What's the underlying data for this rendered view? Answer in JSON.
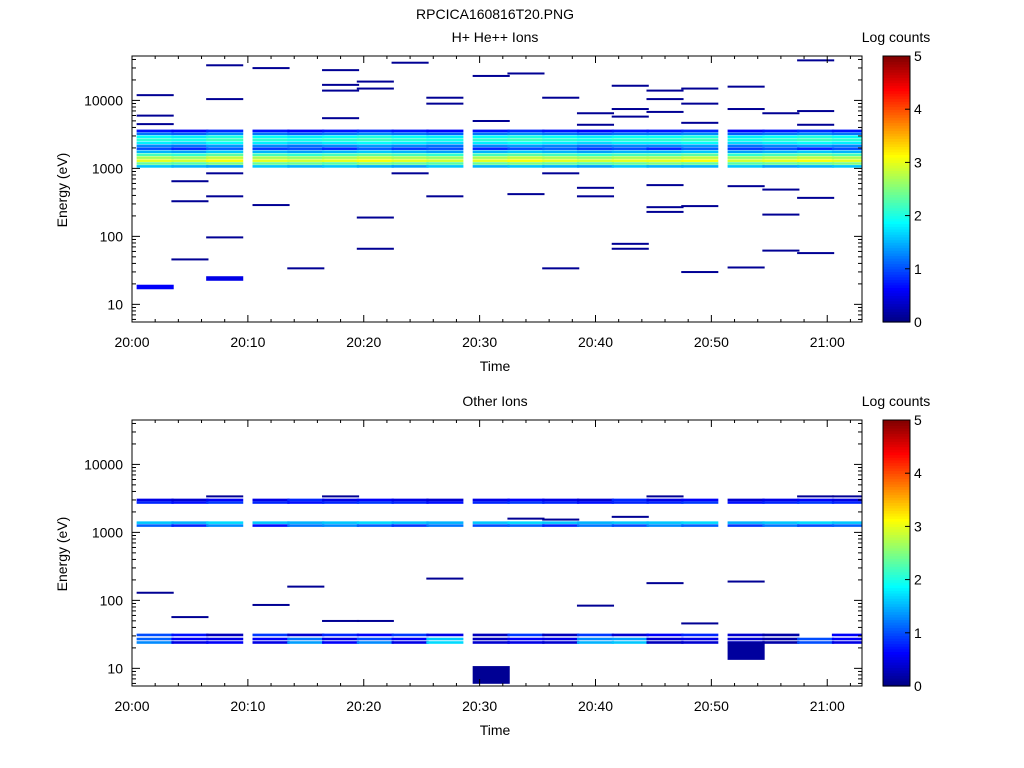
{
  "figure_title": "RPCICA160816T20.PNG",
  "chart_data": [
    {
      "type": "heatmap",
      "title": "H+ He++ Ions",
      "xlabel": "Time",
      "ylabel": "Energy (eV)",
      "yscale": "log",
      "xlim": [
        "20:00",
        "21:03"
      ],
      "ylim": [
        5.5,
        45000
      ],
      "x_ticks": [
        "20:00",
        "20:10",
        "20:20",
        "20:30",
        "20:40",
        "20:50",
        "21:00"
      ],
      "y_ticks": [
        "10",
        "100",
        "1000",
        "10000"
      ],
      "colorbar": {
        "label": "Log counts",
        "range": [
          0,
          5
        ],
        "ticks": [
          "0",
          "1",
          "2",
          "3",
          "4",
          "5"
        ],
        "colormap": "jet"
      },
      "time_bins": [
        "20:02",
        "20:05",
        "20:08",
        "20:12",
        "20:15",
        "20:18",
        "20:21",
        "20:24",
        "20:27",
        "20:31",
        "20:34",
        "20:37",
        "20:40",
        "20:43",
        "20:46",
        "20:49",
        "20:53",
        "20:56",
        "20:59",
        "21:02"
      ],
      "bands": [
        {
          "energy": 1070,
          "log_counts": [
            1.6,
            1.5,
            1.4,
            1.6,
            1.5,
            1.6,
            1.5,
            1.4,
            1.6,
            1.5,
            1.6,
            1.5,
            1.4,
            1.6,
            1.5,
            1.5,
            1.6,
            1.4,
            1.5,
            1.6
          ]
        },
        {
          "energy": 1180,
          "log_counts": [
            2.4,
            2.3,
            2.5,
            2.4,
            2.4,
            2.3,
            2.5,
            2.4,
            2.3,
            2.4,
            2.5,
            2.4,
            2.3,
            2.4,
            2.5,
            2.4,
            2.3,
            2.4,
            2.4,
            2.5
          ]
        },
        {
          "energy": 1300,
          "log_counts": [
            3.0,
            2.9,
            3.1,
            3.0,
            2.9,
            3.0,
            3.1,
            3.0,
            2.9,
            3.0,
            3.1,
            3.0,
            2.9,
            3.0,
            3.0,
            3.1,
            2.9,
            3.0,
            3.1,
            3.0
          ]
        },
        {
          "energy": 1440,
          "log_counts": [
            2.7,
            2.6,
            2.8,
            2.7,
            2.6,
            2.7,
            2.8,
            2.7,
            2.6,
            2.7,
            2.8,
            2.7,
            2.6,
            2.7,
            2.7,
            2.8,
            2.6,
            2.7,
            2.8,
            2.7
          ]
        },
        {
          "energy": 1590,
          "log_counts": [
            2.2,
            2.1,
            2.3,
            2.2,
            2.1,
            2.2,
            2.3,
            2.2,
            2.1,
            2.2,
            2.3,
            2.2,
            2.1,
            2.2,
            2.2,
            2.3,
            2.1,
            2.2,
            2.3,
            2.2
          ]
        },
        {
          "energy": 1760,
          "log_counts": [
            1.5,
            1.4,
            1.6,
            1.5,
            1.4,
            1.5,
            1.6,
            1.5,
            1.4,
            1.5,
            1.6,
            1.5,
            1.4,
            1.5,
            1.5,
            1.6,
            1.4,
            1.5,
            1.6,
            1.5
          ]
        },
        {
          "energy": 1950,
          "log_counts": [
            1.0,
            0.8,
            1.1,
            0.9,
            1.0,
            0.8,
            1.1,
            0.9,
            1.0,
            0.8,
            1.0,
            1.1,
            0.9,
            1.0,
            0.8,
            1.1,
            0.9,
            1.0,
            0.8,
            1.0
          ]
        },
        {
          "energy": 2150,
          "log_counts": [
            1.3,
            1.2,
            1.4,
            1.3,
            1.2,
            1.3,
            1.4,
            1.3,
            1.2,
            1.3,
            1.4,
            1.3,
            1.2,
            1.3,
            1.3,
            1.4,
            1.2,
            1.3,
            1.4,
            1.3
          ]
        },
        {
          "energy": 2380,
          "log_counts": [
            1.8,
            1.7,
            1.9,
            1.8,
            1.7,
            1.8,
            1.9,
            1.8,
            1.7,
            1.8,
            1.9,
            1.8,
            1.7,
            1.8,
            1.8,
            1.9,
            1.7,
            1.8,
            1.9,
            1.8
          ]
        },
        {
          "energy": 2640,
          "log_counts": [
            2.1,
            2.0,
            2.2,
            2.1,
            2.0,
            2.1,
            2.2,
            2.1,
            2.0,
            2.1,
            2.2,
            2.1,
            2.0,
            2.1,
            2.1,
            2.2,
            2.0,
            2.1,
            2.2,
            2.1
          ]
        },
        {
          "energy": 2920,
          "log_counts": [
            1.9,
            1.8,
            2.0,
            1.9,
            1.8,
            1.9,
            2.0,
            1.9,
            1.8,
            1.9,
            2.0,
            1.9,
            1.8,
            1.9,
            1.9,
            2.0,
            1.8,
            1.9,
            2.0,
            1.9
          ]
        },
        {
          "energy": 3230,
          "log_counts": [
            1.2,
            1.1,
            1.3,
            1.2,
            1.1,
            1.2,
            1.3,
            1.2,
            1.1,
            1.2,
            1.3,
            1.2,
            1.1,
            1.2,
            1.2,
            1.3,
            1.1,
            1.2,
            1.3,
            1.2
          ]
        },
        {
          "energy": 3560,
          "log_counts": [
            0.7,
            0.6,
            0.8,
            0.7,
            0.6,
            0.7,
            0.8,
            0.7,
            0.6,
            0.7,
            0.8,
            0.7,
            0.6,
            0.7,
            0.7,
            0.8,
            0.6,
            0.7,
            0.8,
            0.7
          ]
        }
      ],
      "sparse_points": [
        {
          "t": "20:02",
          "e": 12000
        },
        {
          "t": "20:02",
          "e": 6000
        },
        {
          "t": "20:02",
          "e": 4500
        },
        {
          "t": "20:02",
          "e": 18,
          "c": 0.6
        },
        {
          "t": "20:05",
          "e": 650
        },
        {
          "t": "20:05",
          "e": 330
        },
        {
          "t": "20:05",
          "e": 46
        },
        {
          "t": "20:08",
          "e": 33000
        },
        {
          "t": "20:08",
          "e": 10500
        },
        {
          "t": "20:08",
          "e": 850
        },
        {
          "t": "20:08",
          "e": 390
        },
        {
          "t": "20:08",
          "e": 97
        },
        {
          "t": "20:08",
          "e": 24,
          "c": 0.5
        },
        {
          "t": "20:12",
          "e": 30000
        },
        {
          "t": "20:12",
          "e": 290
        },
        {
          "t": "20:15",
          "e": 34
        },
        {
          "t": "20:18",
          "e": 28000
        },
        {
          "t": "20:18",
          "e": 17000
        },
        {
          "t": "20:18",
          "e": 14000
        },
        {
          "t": "20:18",
          "e": 5500
        },
        {
          "t": "20:21",
          "e": 19000
        },
        {
          "t": "20:21",
          "e": 15000
        },
        {
          "t": "20:21",
          "e": 190
        },
        {
          "t": "20:21",
          "e": 66
        },
        {
          "t": "20:24",
          "e": 36000
        },
        {
          "t": "20:24",
          "e": 850
        },
        {
          "t": "20:27",
          "e": 11000
        },
        {
          "t": "20:27",
          "e": 9000
        },
        {
          "t": "20:27",
          "e": 390
        },
        {
          "t": "20:31",
          "e": 23000
        },
        {
          "t": "20:31",
          "e": 5000
        },
        {
          "t": "20:34",
          "e": 25000
        },
        {
          "t": "20:34",
          "e": 420
        },
        {
          "t": "20:37",
          "e": 11000
        },
        {
          "t": "20:37",
          "e": 850
        },
        {
          "t": "20:37",
          "e": 34
        },
        {
          "t": "20:40",
          "e": 6500
        },
        {
          "t": "20:40",
          "e": 4400
        },
        {
          "t": "20:40",
          "e": 520
        },
        {
          "t": "20:40",
          "e": 390
        },
        {
          "t": "20:43",
          "e": 16500
        },
        {
          "t": "20:43",
          "e": 7500
        },
        {
          "t": "20:43",
          "e": 5800
        },
        {
          "t": "20:43",
          "e": 78
        },
        {
          "t": "20:43",
          "e": 66
        },
        {
          "t": "20:46",
          "e": 14000
        },
        {
          "t": "20:46",
          "e": 10500
        },
        {
          "t": "20:46",
          "e": 6800
        },
        {
          "t": "20:46",
          "e": 570
        },
        {
          "t": "20:46",
          "e": 270
        },
        {
          "t": "20:46",
          "e": 230
        },
        {
          "t": "20:49",
          "e": 15000
        },
        {
          "t": "20:49",
          "e": 9000
        },
        {
          "t": "20:49",
          "e": 4700
        },
        {
          "t": "20:49",
          "e": 280
        },
        {
          "t": "20:49",
          "e": 30
        },
        {
          "t": "20:53",
          "e": 16000
        },
        {
          "t": "20:53",
          "e": 7500
        },
        {
          "t": "20:53",
          "e": 550
        },
        {
          "t": "20:53",
          "e": 35
        },
        {
          "t": "20:56",
          "e": 6500
        },
        {
          "t": "20:56",
          "e": 490
        },
        {
          "t": "20:56",
          "e": 210
        },
        {
          "t": "20:56",
          "e": 62
        },
        {
          "t": "20:59",
          "e": 39000
        },
        {
          "t": "20:59",
          "e": 7000
        },
        {
          "t": "20:59",
          "e": 4400
        },
        {
          "t": "20:59",
          "e": 370
        },
        {
          "t": "20:59",
          "e": 57
        }
      ]
    },
    {
      "type": "heatmap",
      "title": "Other Ions",
      "xlabel": "Time",
      "ylabel": "Energy (eV)",
      "yscale": "log",
      "xlim": [
        "20:00",
        "21:03"
      ],
      "ylim": [
        5.5,
        45000
      ],
      "x_ticks": [
        "20:00",
        "20:10",
        "20:20",
        "20:30",
        "20:40",
        "20:50",
        "21:00"
      ],
      "y_ticks": [
        "10",
        "100",
        "1000",
        "10000"
      ],
      "colorbar": {
        "label": "Log counts",
        "range": [
          0,
          5
        ],
        "ticks": [
          "0",
          "1",
          "2",
          "3",
          "4",
          "5"
        ],
        "colormap": "jet"
      },
      "time_bins": [
        "20:02",
        "20:05",
        "20:08",
        "20:12",
        "20:15",
        "20:18",
        "20:21",
        "20:24",
        "20:27",
        "20:31",
        "20:34",
        "20:37",
        "20:40",
        "20:43",
        "20:46",
        "20:49",
        "20:53",
        "20:56",
        "20:59",
        "21:02"
      ],
      "bands": [
        {
          "energy": 24,
          "log_counts": [
            1.3,
            0.5,
            0.6,
            0.5,
            1.4,
            0.6,
            1.3,
            0.5,
            1.7,
            0.4,
            0.5,
            0.4,
            1.5,
            1.6,
            0.3,
            0.4,
            0.3,
            0.2,
            1.0,
            0.5
          ]
        },
        {
          "energy": 27,
          "log_counts": [
            1.1,
            0.6,
            0.5,
            0.6,
            1.2,
            0.5,
            1.0,
            0.6,
            1.6,
            0.3,
            0.6,
            0.5,
            1.3,
            1.4,
            0.4,
            0.5,
            0.4,
            0.2,
            1.0,
            0.6
          ]
        },
        {
          "energy": 31,
          "log_counts": [
            1.0,
            0.7,
            0.3,
            0.9,
            0.4,
            0.8,
            0.6,
            0.9,
            0.5,
            0.3,
            0.9,
            0.3,
            0.9,
            0.4,
            0.6,
            0.8,
            0.4,
            0.2,
            null,
            0.6
          ]
        },
        {
          "energy": 1260,
          "log_counts": [
            1.1,
            0.8,
            1.3,
            0.7,
            1.2,
            1.3,
            1.1,
            0.9,
            1.2,
            1.0,
            1.1,
            0.8,
            1.2,
            1.0,
            1.3,
            1.1,
            0.9,
            1.2,
            1.0,
            1.1
          ]
        },
        {
          "energy": 1390,
          "log_counts": [
            1.6,
            1.5,
            1.7,
            1.6,
            1.5,
            1.6,
            1.7,
            1.6,
            1.5,
            1.6,
            1.7,
            1.6,
            1.5,
            1.6,
            1.6,
            1.7,
            1.5,
            1.6,
            1.7,
            1.6
          ]
        },
        {
          "energy": 2750,
          "log_counts": [
            0.8,
            0.7,
            0.9,
            0.8,
            0.7,
            0.8,
            0.9,
            0.8,
            0.7,
            0.8,
            0.9,
            0.8,
            0.7,
            0.8,
            0.8,
            0.9,
            0.7,
            0.8,
            0.9,
            0.8
          ]
        },
        {
          "energy": 3000,
          "log_counts": [
            0.5,
            0.4,
            0.6,
            0.5,
            0.8,
            0.5,
            0.6,
            0.5,
            0.4,
            0.5,
            0.6,
            0.5,
            0.4,
            0.8,
            0.5,
            0.6,
            0.4,
            0.5,
            0.6,
            0.5
          ]
        }
      ],
      "sparse_points": [
        {
          "t": "20:02",
          "e": 130
        },
        {
          "t": "20:05",
          "e": 57
        },
        {
          "t": "20:08",
          "e": 3400
        },
        {
          "t": "20:12",
          "e": 86
        },
        {
          "t": "20:15",
          "e": 160
        },
        {
          "t": "20:18",
          "e": 3400
        },
        {
          "t": "20:18",
          "e": 50
        },
        {
          "t": "20:21",
          "e": 50
        },
        {
          "t": "20:27",
          "e": 210
        },
        {
          "t": "20:31",
          "e": 8,
          "c": 0.1
        },
        {
          "t": "20:34",
          "e": 1600
        },
        {
          "t": "20:37",
          "e": 1550
        },
        {
          "t": "20:40",
          "e": 84
        },
        {
          "t": "20:43",
          "e": 1700
        },
        {
          "t": "20:46",
          "e": 3400
        },
        {
          "t": "20:46",
          "e": 180
        },
        {
          "t": "20:49",
          "e": 46
        },
        {
          "t": "20:53",
          "e": 190
        },
        {
          "t": "20:53",
          "e": 18,
          "c": 0.15
        },
        {
          "t": "20:59",
          "e": 3400
        },
        {
          "t": "21:02",
          "e": 3400
        }
      ]
    }
  ]
}
